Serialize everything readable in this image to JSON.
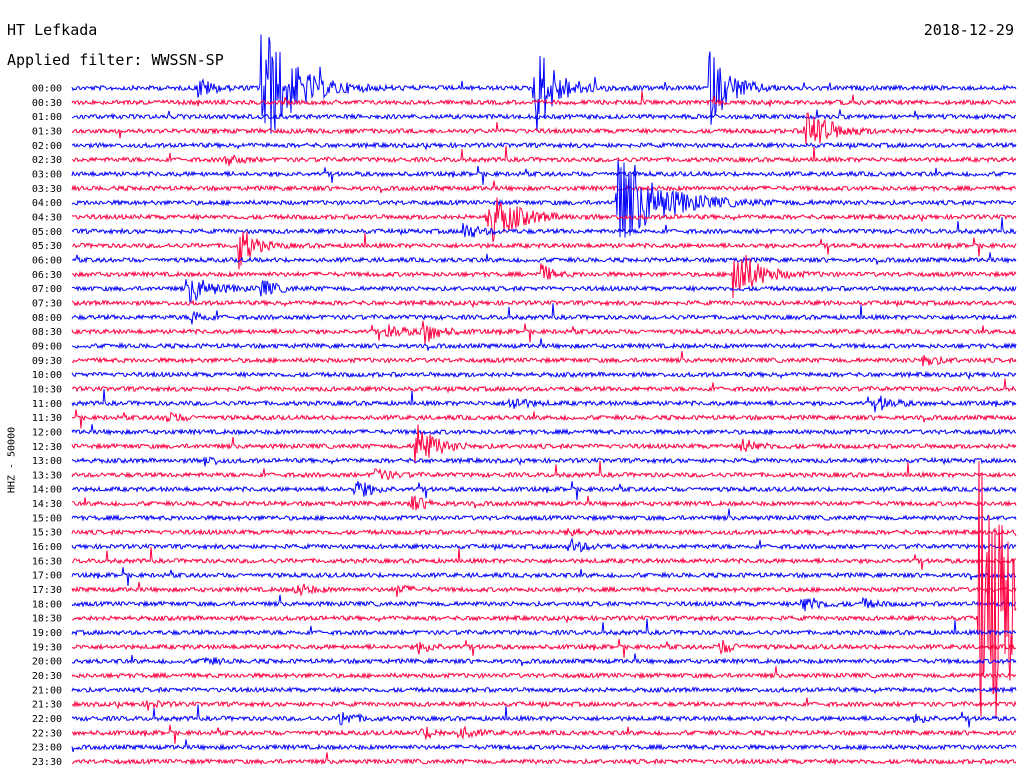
{
  "header": {
    "station": "HT Lefkada",
    "filter": "Applied filter: WWSSN-SP",
    "date": "2018-12-29"
  },
  "channel_label": "HHZ - 50000",
  "colors": {
    "blue": "#0000ff",
    "red": "#ff0040",
    "background": "#ffffff"
  },
  "chart_data": {
    "type": "line",
    "title": "HT Lefkada",
    "subtitle": "Applied filter: WWSSN-SP",
    "ylabel": "HHZ - 50000",
    "xlabel": "",
    "grid": false,
    "rows": [
      "00:00",
      "00:30",
      "01:00",
      "01:30",
      "02:00",
      "02:30",
      "03:00",
      "03:30",
      "04:00",
      "04:30",
      "05:00",
      "05:30",
      "06:00",
      "06:30",
      "07:00",
      "07:30",
      "08:00",
      "08:30",
      "09:00",
      "09:30",
      "10:00",
      "10:30",
      "11:00",
      "11:30",
      "12:00",
      "12:30",
      "13:00",
      "13:30",
      "14:00",
      "14:30",
      "15:00",
      "15:30",
      "16:00",
      "16:30",
      "17:00",
      "17:30",
      "18:00",
      "18:30",
      "19:00",
      "19:30",
      "20:00",
      "20:30",
      "21:00",
      "21:30",
      "22:00",
      "22:30",
      "23:00",
      "23:30"
    ],
    "row_colors": [
      "blue",
      "red"
    ],
    "trace_start_x": 0,
    "trace_end_x": 30,
    "events": [
      {
        "row": 0,
        "x": 6.0,
        "amp": 10,
        "width": 0.9
      },
      {
        "row": 0,
        "x": 14.7,
        "amp": 7,
        "width": 0.6
      },
      {
        "row": 0,
        "x": 20.2,
        "amp": 6,
        "width": 0.6
      },
      {
        "row": 0,
        "x": 4.0,
        "amp": 1.6,
        "width": 0.4
      },
      {
        "row": 3,
        "x": 23.3,
        "amp": 4,
        "width": 0.6
      },
      {
        "row": 5,
        "x": 4.9,
        "amp": 1.2,
        "width": 0.3
      },
      {
        "row": 8,
        "x": 17.3,
        "amp": 7,
        "width": 1.2
      },
      {
        "row": 9,
        "x": 13.2,
        "amp": 4,
        "width": 0.8
      },
      {
        "row": 10,
        "x": 12.4,
        "amp": 1.4,
        "width": 0.4
      },
      {
        "row": 11,
        "x": 5.3,
        "amp": 3.5,
        "width": 0.4
      },
      {
        "row": 13,
        "x": 14.9,
        "amp": 1.5,
        "width": 0.3
      },
      {
        "row": 13,
        "x": 21.0,
        "amp": 5,
        "width": 0.6
      },
      {
        "row": 14,
        "x": 3.7,
        "amp": 2.2,
        "width": 0.6
      },
      {
        "row": 14,
        "x": 6.0,
        "amp": 1.3,
        "width": 0.4
      },
      {
        "row": 16,
        "x": 3.8,
        "amp": 1.1,
        "width": 0.3
      },
      {
        "row": 17,
        "x": 10.0,
        "amp": 1.2,
        "width": 0.4
      },
      {
        "row": 17,
        "x": 11.1,
        "amp": 2.2,
        "width": 0.4
      },
      {
        "row": 19,
        "x": 27.0,
        "amp": 1.1,
        "width": 0.4
      },
      {
        "row": 22,
        "x": 13.9,
        "amp": 1.2,
        "width": 0.4
      },
      {
        "row": 22,
        "x": 25.6,
        "amp": 1.1,
        "width": 0.4
      },
      {
        "row": 23,
        "x": 2.9,
        "amp": 0.9,
        "width": 0.4
      },
      {
        "row": 25,
        "x": 10.9,
        "amp": 4,
        "width": 0.5
      },
      {
        "row": 25,
        "x": 21.3,
        "amp": 1.2,
        "width": 0.4
      },
      {
        "row": 26,
        "x": 4.2,
        "amp": 0.9,
        "width": 0.3
      },
      {
        "row": 27,
        "x": 9.6,
        "amp": 1.0,
        "width": 0.4
      },
      {
        "row": 28,
        "x": 9.0,
        "amp": 1.6,
        "width": 0.4
      },
      {
        "row": 29,
        "x": 10.8,
        "amp": 1.1,
        "width": 0.4
      },
      {
        "row": 31,
        "x": 15.7,
        "amp": 0.9,
        "width": 0.3
      },
      {
        "row": 32,
        "x": 15.8,
        "amp": 1.1,
        "width": 0.4
      },
      {
        "row": 35,
        "x": 7.1,
        "amp": 1.0,
        "width": 0.4
      },
      {
        "row": 35,
        "x": 10.3,
        "amp": 0.9,
        "width": 0.3
      },
      {
        "row": 36,
        "x": 23.2,
        "amp": 1.5,
        "width": 0.4
      },
      {
        "row": 36,
        "x": 25.1,
        "amp": 0.8,
        "width": 0.3
      },
      {
        "row": 39,
        "x": 11.0,
        "amp": 0.9,
        "width": 0.4
      },
      {
        "row": 39,
        "x": 20.6,
        "amp": 1.0,
        "width": 0.4
      },
      {
        "row": 40,
        "x": 4.2,
        "amp": 0.8,
        "width": 0.3
      },
      {
        "row": 43,
        "x": 2.4,
        "amp": 0.8,
        "width": 0.3
      },
      {
        "row": 44,
        "x": 8.5,
        "amp": 1.2,
        "width": 0.4
      },
      {
        "row": 44,
        "x": 26.8,
        "amp": 0.8,
        "width": 0.3
      },
      {
        "row": 45,
        "x": 11.1,
        "amp": 1.0,
        "width": 0.4
      },
      {
        "row": 45,
        "x": 12.3,
        "amp": 0.9,
        "width": 0.4
      },
      {
        "row": 37,
        "x": 28.8,
        "amp": 22,
        "width": 1.5
      }
    ]
  }
}
